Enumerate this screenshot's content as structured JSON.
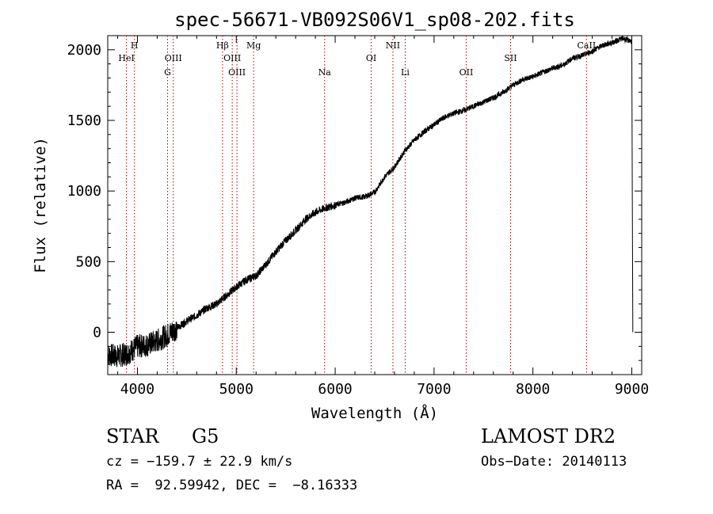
{
  "chart_data": {
    "type": "line",
    "title": "spec-56671-VB092S06V1_sp08-202.fits",
    "xlabel": "Wavelength (Å)",
    "ylabel": "Flux (relative)",
    "xlim": [
      3700,
      9100
    ],
    "ylim": [
      -300,
      2100
    ],
    "xticks": [
      4000,
      5000,
      6000,
      7000,
      8000,
      9000
    ],
    "yticks": [
      0,
      500,
      1000,
      1500,
      2000
    ],
    "grid": false,
    "series": [
      {
        "color": "#000000",
        "x": [
          3700,
          3800,
          3900,
          4000,
          4100,
          4200,
          4300,
          4400,
          4500,
          4600,
          4700,
          4800,
          4900,
          5000,
          5100,
          5200,
          5300,
          5400,
          5500,
          5600,
          5700,
          5800,
          5900,
          6000,
          6100,
          6200,
          6300,
          6400,
          6500,
          6600,
          6700,
          6800,
          6900,
          7000,
          7100,
          7200,
          7300,
          7400,
          7500,
          7600,
          7700,
          7800,
          7900,
          8000,
          8100,
          8200,
          8300,
          8400,
          8500,
          8600,
          8700,
          8800,
          8900,
          9000,
          9010
        ],
        "y": [
          -160,
          -170,
          -150,
          -100,
          -90,
          -60,
          -20,
          30,
          80,
          120,
          170,
          200,
          260,
          320,
          370,
          400,
          480,
          570,
          650,
          720,
          800,
          850,
          880,
          900,
          920,
          950,
          960,
          990,
          1100,
          1170,
          1280,
          1360,
          1420,
          1470,
          1520,
          1550,
          1570,
          1600,
          1630,
          1660,
          1700,
          1750,
          1790,
          1810,
          1840,
          1870,
          1890,
          1940,
          1960,
          1990,
          2030,
          2050,
          2080,
          2060,
          0
        ]
      }
    ],
    "lines": [
      {
        "label": "HeI",
        "x": 3889,
        "row": 1
      },
      {
        "label": "H",
        "x": 3970,
        "row": 0
      },
      {
        "label": "OIII",
        "x": 4363,
        "row": 1
      },
      {
        "label": "G",
        "x": 4305,
        "row": 2
      },
      {
        "label": "Hβ",
        "x": 4861,
        "row": 0
      },
      {
        "label": "OIII",
        "x": 4959,
        "row": 1
      },
      {
        "label": "OIII",
        "x": 5007,
        "row": 2
      },
      {
        "label": "Mg",
        "x": 5175,
        "row": 0
      },
      {
        "label": "Na",
        "x": 5893,
        "row": 2
      },
      {
        "label": "OI",
        "x": 6364,
        "row": 1
      },
      {
        "label": "NII",
        "x": 6584,
        "row": 0
      },
      {
        "label": "Li",
        "x": 6708,
        "row": 2
      },
      {
        "label": "OII",
        "x": 7325,
        "row": 2
      },
      {
        "label": "SII",
        "x": 7774,
        "row": 1
      },
      {
        "label": "CaII",
        "x": 8542,
        "row": 0
      }
    ]
  },
  "info": {
    "object_class": "STAR",
    "subclass": "G5",
    "survey": "LAMOST DR2",
    "velocity": "cz = −159.7 ± 22.9 km/s",
    "obs_date": "Obs−Date: 20140113",
    "coords": "RA =  92.59942, DEC =  −8.16333"
  }
}
